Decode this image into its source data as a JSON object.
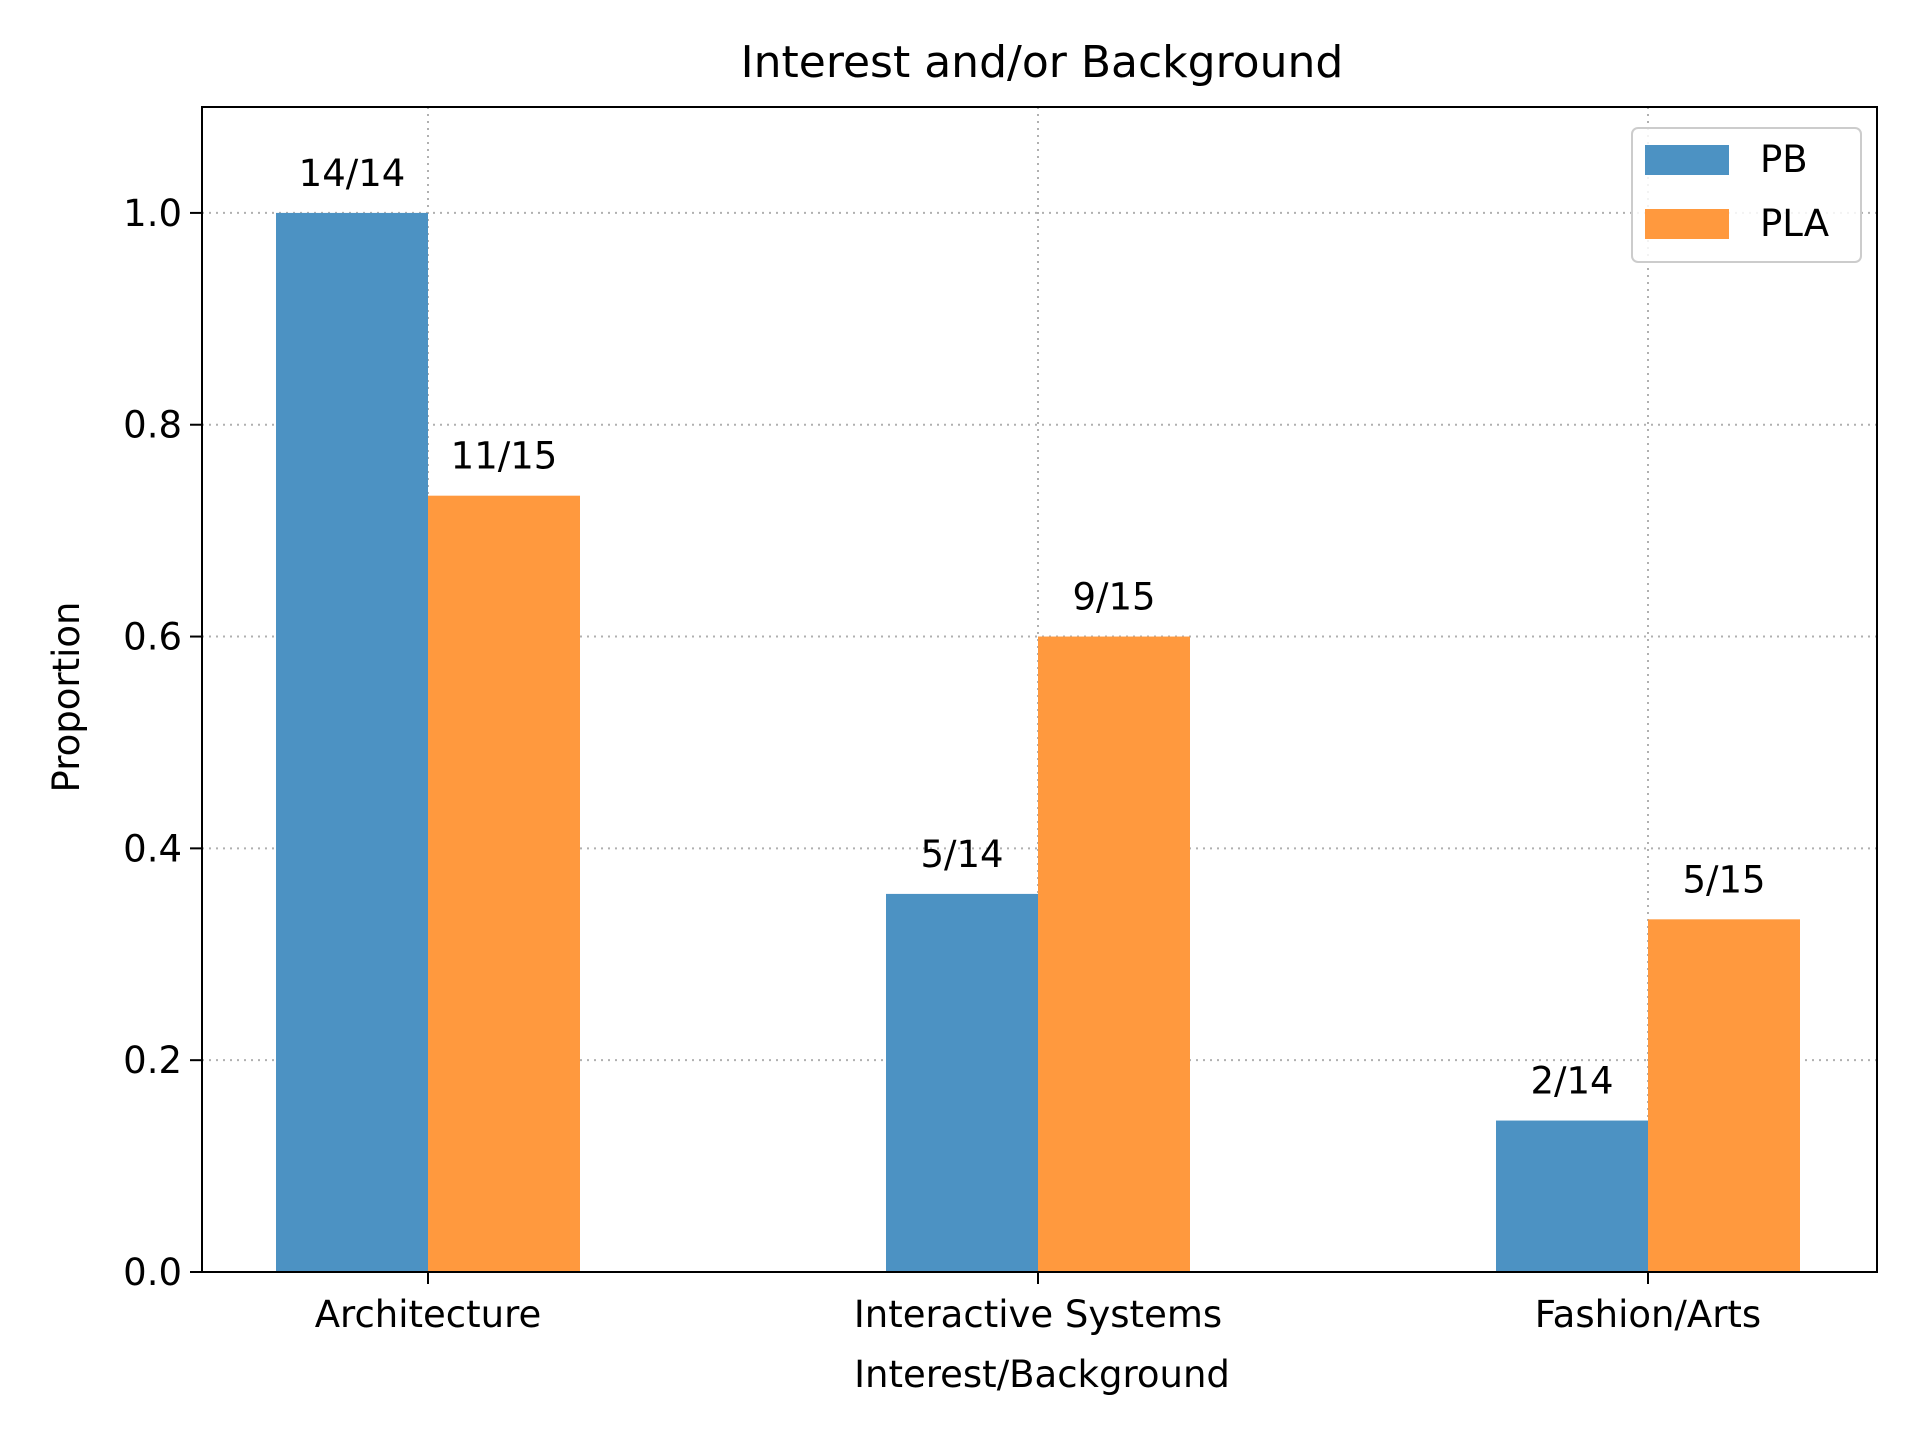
{
  "chart_data": {
    "type": "bar",
    "title": "Interest and/or Background",
    "xlabel": "Interest/Background",
    "ylabel": "Proportion",
    "categories": [
      "Architecture",
      "Interactive Systems",
      "Fashion/Arts"
    ],
    "series": [
      {
        "name": "PB",
        "color": "#4c92c3",
        "values": [
          1.0,
          0.357,
          0.143
        ],
        "labels": [
          "14/14",
          "5/14",
          "2/14"
        ]
      },
      {
        "name": "PLA",
        "color": "#ff993e",
        "values": [
          0.733,
          0.6,
          0.333
        ],
        "labels": [
          "11/15",
          "9/15",
          "5/15"
        ]
      }
    ],
    "ylim": [
      0,
      1.1
    ],
    "yticks": [
      0.0,
      0.2,
      0.4,
      0.6,
      0.8,
      1.0
    ],
    "ytick_labels": [
      "0.0",
      "0.2",
      "0.4",
      "0.6",
      "0.8",
      "1.0"
    ],
    "grid": true,
    "legend_position": "top-right"
  }
}
